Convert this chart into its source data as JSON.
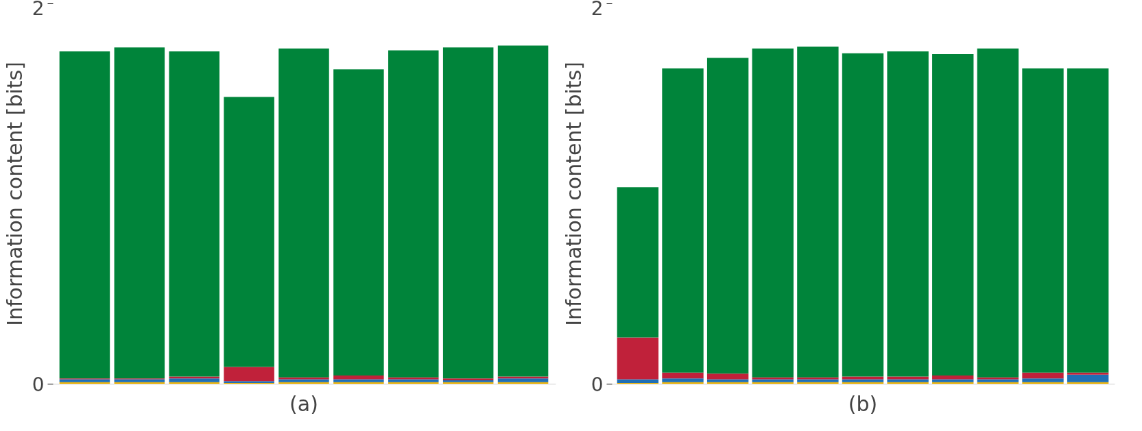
{
  "chart_data": [
    {
      "type": "bar",
      "stacked": true,
      "xlabel": "(a)",
      "ylabel": "Information content [bits]",
      "ylim": [
        0,
        2
      ],
      "yticks": [
        0,
        2
      ],
      "grid": false,
      "categories": [
        null,
        null,
        null,
        null,
        null,
        null,
        null,
        null,
        null
      ],
      "series": [
        {
          "color": "#f0b400",
          "values": [
            0.01,
            0.01,
            0.01,
            0.005,
            0.01,
            0.01,
            0.01,
            0.01,
            0.01
          ]
        },
        {
          "color": "#1f6fb5",
          "values": [
            0.015,
            0.015,
            0.02,
            0.01,
            0.015,
            0.015,
            0.015,
            0.01,
            0.02
          ]
        },
        {
          "color": "#c0213a",
          "values": [
            0.005,
            0.005,
            0.01,
            0.075,
            0.01,
            0.02,
            0.01,
            0.01,
            0.01
          ]
        },
        {
          "color": "#00843a",
          "values": [
            1.72,
            1.74,
            1.71,
            1.42,
            1.73,
            1.61,
            1.72,
            1.74,
            1.74
          ]
        }
      ]
    },
    {
      "type": "bar",
      "stacked": true,
      "xlabel": "(b)",
      "ylabel": "Information content [bits]",
      "ylim": [
        0,
        2
      ],
      "yticks": [
        0,
        2
      ],
      "grid": false,
      "categories": [
        null,
        null,
        null,
        null,
        null,
        null,
        null,
        null,
        null,
        null,
        null
      ],
      "series": [
        {
          "color": "#f0b400",
          "values": [
            0.005,
            0.01,
            0.01,
            0.01,
            0.01,
            0.01,
            0.01,
            0.01,
            0.01,
            0.01,
            0.01
          ]
        },
        {
          "color": "#1f6fb5",
          "values": [
            0.02,
            0.02,
            0.015,
            0.015,
            0.015,
            0.015,
            0.015,
            0.015,
            0.015,
            0.02,
            0.04
          ]
        },
        {
          "color": "#c0213a",
          "values": [
            0.22,
            0.03,
            0.03,
            0.01,
            0.01,
            0.015,
            0.015,
            0.02,
            0.01,
            0.03,
            0.01
          ]
        },
        {
          "color": "#00843a",
          "values": [
            0.79,
            1.6,
            1.66,
            1.73,
            1.74,
            1.7,
            1.71,
            1.69,
            1.73,
            1.6,
            1.6
          ]
        }
      ]
    }
  ]
}
